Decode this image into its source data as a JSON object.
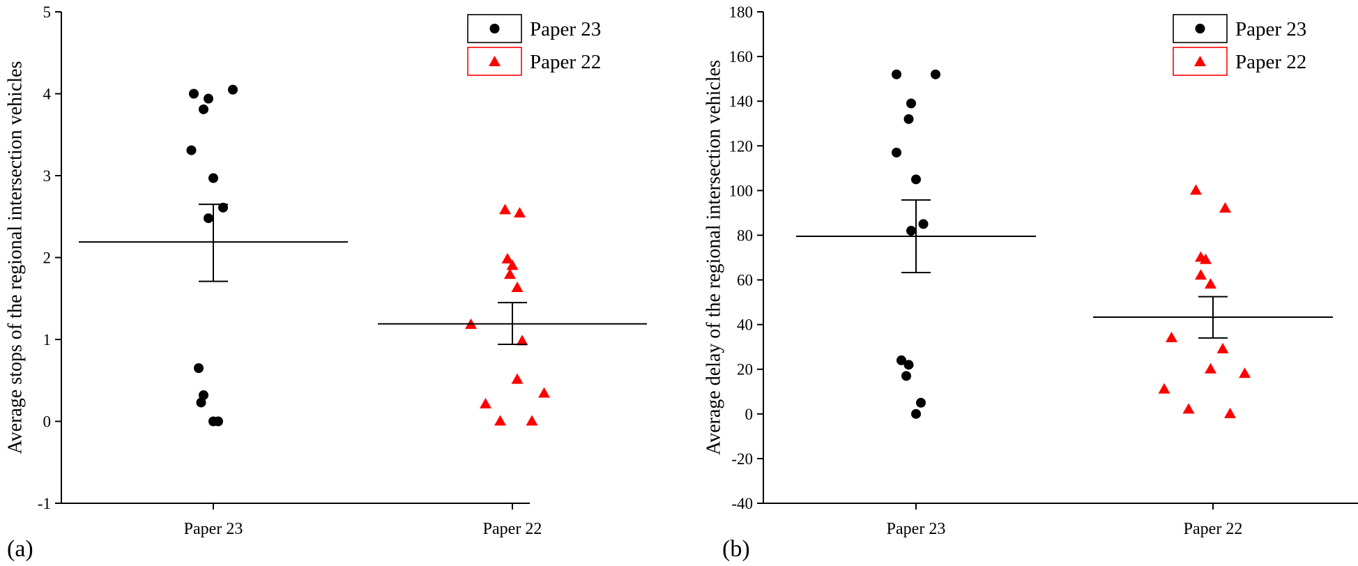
{
  "chart_data": [
    {
      "type": "scatter",
      "panel_label": "(a)",
      "ylabel": "Average stops of the regional intersection vehicles",
      "xlabel": "",
      "categories": [
        "Paper 23",
        "Paper 22"
      ],
      "ylim": [
        -1,
        5
      ],
      "yticks": [
        -1,
        0,
        1,
        2,
        3,
        4,
        5
      ],
      "legend_position": "top-right",
      "series": [
        {
          "name": "Paper 23",
          "category": "Paper 23",
          "marker": "circle",
          "color": "#000000",
          "points": [
            [
              -0.08,
              4.0
            ],
            [
              -0.02,
              3.94
            ],
            [
              0.08,
              4.05
            ],
            [
              -0.04,
              3.81
            ],
            [
              -0.09,
              3.31
            ],
            [
              0.0,
              2.97
            ],
            [
              0.04,
              2.61
            ],
            [
              -0.02,
              2.48
            ],
            [
              -0.06,
              0.65
            ],
            [
              -0.04,
              0.32
            ],
            [
              -0.05,
              0.23
            ],
            [
              0.0,
              0.0
            ],
            [
              0.02,
              0.0
            ]
          ],
          "mean": 2.19,
          "error": [
            1.71,
            2.65
          ]
        },
        {
          "name": "Paper 22",
          "category": "Paper 22",
          "marker": "triangle",
          "color": "#ff0000",
          "points": [
            [
              -0.03,
              2.58
            ],
            [
              0.03,
              2.54
            ],
            [
              -0.02,
              1.98
            ],
            [
              0.0,
              1.9
            ],
            [
              -0.01,
              1.79
            ],
            [
              0.02,
              1.63
            ],
            [
              -0.17,
              1.18
            ],
            [
              0.04,
              0.98
            ],
            [
              0.02,
              0.51
            ],
            [
              0.13,
              0.34
            ],
            [
              -0.11,
              0.21
            ],
            [
              -0.05,
              0.0
            ],
            [
              0.08,
              0.0
            ]
          ],
          "mean": 1.19,
          "error": [
            0.94,
            1.45
          ]
        }
      ]
    },
    {
      "type": "scatter",
      "panel_label": "(b)",
      "ylabel": "Average delay of the regional intersection vehicles",
      "xlabel": "",
      "categories": [
        "Paper 23",
        "Paper 22"
      ],
      "ylim": [
        -40,
        180
      ],
      "yticks": [
        -40,
        -20,
        0,
        20,
        40,
        60,
        80,
        100,
        120,
        140,
        160,
        180
      ],
      "legend_position": "top-right",
      "series": [
        {
          "name": "Paper 23",
          "category": "Paper 23",
          "marker": "circle",
          "color": "#000000",
          "points": [
            [
              -0.08,
              152
            ],
            [
              0.08,
              152
            ],
            [
              -0.02,
              139
            ],
            [
              -0.03,
              132
            ],
            [
              -0.08,
              117
            ],
            [
              0.0,
              105
            ],
            [
              0.03,
              85
            ],
            [
              -0.02,
              82
            ],
            [
              -0.06,
              24
            ],
            [
              -0.03,
              22
            ],
            [
              -0.04,
              17
            ],
            [
              0.02,
              5
            ],
            [
              0.0,
              0
            ]
          ],
          "mean": 79.5,
          "error": [
            63.3,
            95.8
          ]
        },
        {
          "name": "Paper 22",
          "category": "Paper 22",
          "marker": "triangle",
          "color": "#ff0000",
          "points": [
            [
              -0.07,
              100
            ],
            [
              0.05,
              92
            ],
            [
              -0.05,
              70
            ],
            [
              -0.03,
              69
            ],
            [
              -0.05,
              62
            ],
            [
              -0.01,
              58
            ],
            [
              -0.17,
              34
            ],
            [
              0.04,
              29
            ],
            [
              -0.01,
              20
            ],
            [
              0.13,
              18
            ],
            [
              -0.2,
              11
            ],
            [
              -0.1,
              2
            ],
            [
              0.07,
              0
            ]
          ],
          "mean": 43.3,
          "error": [
            34.0,
            52.5
          ]
        }
      ]
    }
  ]
}
